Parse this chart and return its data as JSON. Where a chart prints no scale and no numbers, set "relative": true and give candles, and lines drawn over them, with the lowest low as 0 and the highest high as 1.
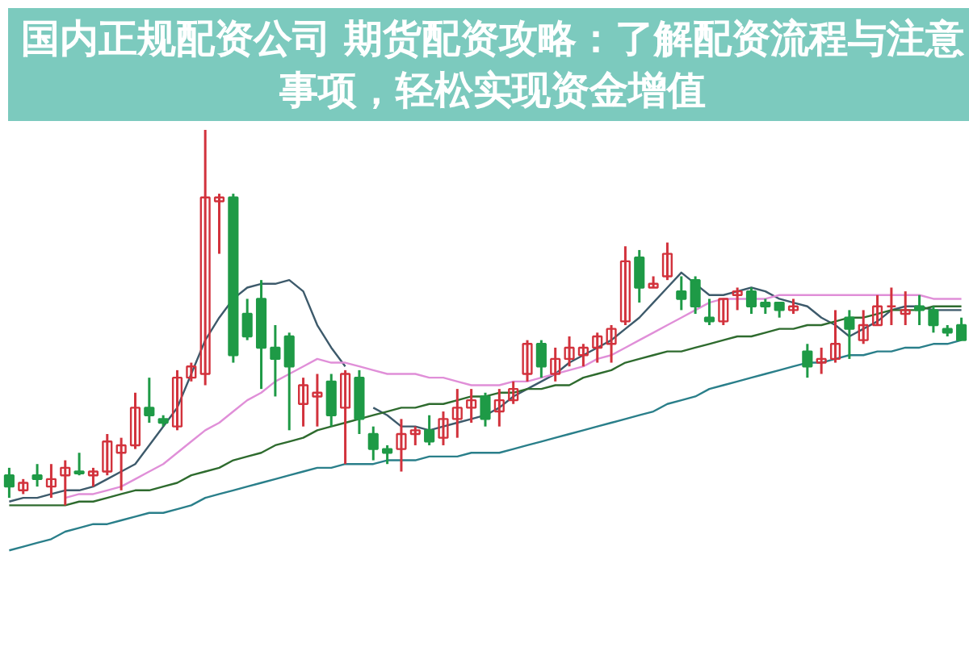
{
  "chart_data": {
    "type": "candlestick",
    "relative": true,
    "title": "国内正规配资公司 期货配资攻略：了解配资流程与注意事项，轻松实现资金增值",
    "categories": [
      null,
      null,
      null,
      null,
      null,
      null,
      null,
      null,
      null,
      null,
      null,
      null,
      null,
      null,
      null,
      null,
      null,
      null,
      null,
      null,
      null,
      null,
      null,
      null,
      null,
      null,
      null,
      null,
      null,
      null,
      null,
      null,
      null,
      null,
      null,
      null,
      null,
      null,
      null,
      null,
      null,
      null,
      null,
      null,
      null,
      null,
      null,
      null,
      null,
      null,
      null,
      null,
      null,
      null,
      null,
      null,
      null,
      null,
      null,
      null,
      null,
      null,
      null,
      null,
      null,
      null,
      null,
      null,
      null
    ],
    "ohlc": [
      [
        0.08,
        0.1,
        0.02,
        0.05
      ],
      [
        0.04,
        0.07,
        0.03,
        0.06
      ],
      [
        0.08,
        0.11,
        0.05,
        0.07
      ],
      [
        0.05,
        0.11,
        0.02,
        0.07
      ],
      [
        0.08,
        0.12,
        0.0,
        0.1
      ],
      [
        0.09,
        0.14,
        0.08,
        0.085
      ],
      [
        0.08,
        0.1,
        0.05,
        0.09
      ],
      [
        0.09,
        0.19,
        0.08,
        0.17
      ],
      [
        0.14,
        0.18,
        0.04,
        0.16
      ],
      [
        0.16,
        0.3,
        0.15,
        0.26
      ],
      [
        0.26,
        0.34,
        0.22,
        0.24
      ],
      [
        0.23,
        0.24,
        0.21,
        0.22
      ],
      [
        0.21,
        0.36,
        0.2,
        0.34
      ],
      [
        0.34,
        0.38,
        0.33,
        0.37
      ],
      [
        0.35,
        1.0,
        0.32,
        0.82
      ],
      [
        0.81,
        0.83,
        0.67,
        0.82
      ],
      [
        0.82,
        0.83,
        0.38,
        0.4
      ],
      [
        0.51,
        0.55,
        0.44,
        0.45
      ],
      [
        0.55,
        0.6,
        0.31,
        0.42
      ],
      [
        0.42,
        0.48,
        0.29,
        0.39
      ],
      [
        0.45,
        0.46,
        0.2,
        0.37
      ],
      [
        0.27,
        0.34,
        0.21,
        0.32
      ],
      [
        0.29,
        0.35,
        0.21,
        0.3
      ],
      [
        0.33,
        0.35,
        0.21,
        0.24
      ],
      [
        0.26,
        0.36,
        0.11,
        0.35
      ],
      [
        0.34,
        0.36,
        0.19,
        0.23
      ],
      [
        0.19,
        0.21,
        0.12,
        0.15
      ],
      [
        0.15,
        0.16,
        0.11,
        0.14
      ],
      [
        0.15,
        0.23,
        0.09,
        0.19
      ],
      [
        0.19,
        0.21,
        0.16,
        0.2
      ],
      [
        0.2,
        0.24,
        0.16,
        0.17
      ],
      [
        0.18,
        0.25,
        0.16,
        0.23
      ],
      [
        0.23,
        0.31,
        0.18,
        0.26
      ],
      [
        0.26,
        0.31,
        0.22,
        0.28
      ],
      [
        0.29,
        0.3,
        0.21,
        0.23
      ],
      [
        0.25,
        0.31,
        0.21,
        0.28
      ],
      [
        0.28,
        0.33,
        0.27,
        0.31
      ],
      [
        0.35,
        0.44,
        0.33,
        0.43
      ],
      [
        0.43,
        0.44,
        0.34,
        0.37
      ],
      [
        0.35,
        0.42,
        0.33,
        0.39
      ],
      [
        0.39,
        0.45,
        0.37,
        0.42
      ],
      [
        0.4,
        0.43,
        0.37,
        0.42
      ],
      [
        0.42,
        0.46,
        0.38,
        0.45
      ],
      [
        0.43,
        0.48,
        0.38,
        0.47
      ],
      [
        0.49,
        0.69,
        0.48,
        0.65
      ],
      [
        0.66,
        0.68,
        0.54,
        0.58
      ],
      [
        0.58,
        0.61,
        0.58,
        0.59
      ],
      [
        0.61,
        0.7,
        0.6,
        0.67
      ],
      [
        0.57,
        0.61,
        0.52,
        0.55
      ],
      [
        0.6,
        0.61,
        0.51,
        0.53
      ],
      [
        0.5,
        0.55,
        0.48,
        0.49
      ],
      [
        0.49,
        0.55,
        0.48,
        0.55
      ],
      [
        0.56,
        0.58,
        0.52,
        0.57
      ],
      [
        0.57,
        0.58,
        0.51,
        0.53
      ],
      [
        0.54,
        0.55,
        0.51,
        0.53
      ],
      [
        0.54,
        0.54,
        0.5,
        0.52
      ],
      [
        0.52,
        0.55,
        0.51,
        0.53
      ],
      [
        0.41,
        0.43,
        0.34,
        0.37
      ],
      [
        0.38,
        0.42,
        0.35,
        0.39
      ],
      [
        0.39,
        0.52,
        0.38,
        0.43
      ],
      [
        0.5,
        0.52,
        0.39,
        0.47
      ],
      [
        0.44,
        0.52,
        0.43,
        0.48
      ],
      [
        0.48,
        0.56,
        0.48,
        0.53
      ],
      [
        0.53,
        0.58,
        0.48,
        0.53
      ],
      [
        0.51,
        0.57,
        0.48,
        0.52
      ],
      [
        0.53,
        0.56,
        0.48,
        0.52
      ],
      [
        0.52,
        0.53,
        0.46,
        0.48
      ],
      [
        0.47,
        0.48,
        0.45,
        0.46
      ],
      [
        0.48,
        0.5,
        0.44,
        0.44
      ]
    ],
    "series": [
      {
        "type": "line",
        "color": "#3d5a6b",
        "values": [
          0.01,
          0.02,
          0.02,
          0.03,
          0.04,
          0.04,
          0.05,
          0.07,
          0.09,
          0.11,
          0.16,
          0.21,
          0.26,
          0.35,
          0.44,
          0.5,
          0.55,
          0.58,
          0.59,
          0.59,
          0.6,
          0.57,
          0.48,
          0.42,
          0.37,
          null,
          0.26,
          0.24,
          0.21,
          0.21,
          0.2,
          0.21,
          0.22,
          0.23,
          0.24,
          0.26,
          0.29,
          0.31,
          0.33,
          0.35,
          0.38,
          0.4,
          0.42,
          0.44,
          0.47,
          0.5,
          0.54,
          0.58,
          0.62,
          0.59,
          0.56,
          0.56,
          0.57,
          0.58,
          0.57,
          0.55,
          0.54,
          0.53,
          0.5,
          0.48,
          0.45,
          0.47,
          0.49,
          0.52,
          0.53,
          0.53,
          0.52,
          0.52,
          0.52
        ]
      },
      {
        "type": "line",
        "color": "#e08fd8",
        "values": [
          null,
          null,
          null,
          null,
          0.02,
          0.03,
          0.03,
          0.04,
          0.05,
          0.07,
          0.09,
          0.11,
          0.14,
          0.17,
          0.2,
          0.22,
          0.25,
          0.28,
          0.3,
          0.33,
          0.35,
          0.37,
          0.39,
          0.38,
          0.38,
          0.37,
          0.36,
          0.35,
          0.35,
          0.35,
          0.34,
          0.34,
          0.33,
          0.32,
          0.32,
          0.32,
          0.33,
          0.33,
          0.34,
          0.35,
          0.36,
          0.37,
          0.39,
          0.4,
          0.42,
          0.44,
          0.46,
          0.48,
          0.5,
          0.52,
          0.54,
          0.55,
          0.55,
          0.55,
          0.55,
          0.56,
          0.56,
          0.56,
          0.56,
          0.56,
          0.56,
          0.56,
          0.56,
          0.56,
          0.56,
          0.56,
          0.55,
          0.55,
          0.55
        ]
      },
      {
        "type": "line",
        "color": "#2e6b2e",
        "values": [
          0,
          0,
          0,
          0,
          0,
          0.01,
          0.01,
          0.02,
          0.03,
          0.04,
          0.04,
          0.05,
          0.06,
          0.08,
          0.09,
          0.1,
          0.12,
          0.13,
          0.14,
          0.16,
          0.17,
          0.18,
          0.2,
          0.21,
          0.22,
          0.23,
          0.24,
          0.25,
          0.26,
          0.26,
          0.27,
          0.27,
          0.28,
          0.29,
          0.29,
          0.3,
          0.3,
          0.31,
          0.31,
          0.32,
          0.32,
          0.34,
          0.35,
          0.36,
          0.38,
          0.39,
          0.4,
          0.41,
          0.41,
          0.42,
          0.43,
          0.44,
          0.45,
          0.45,
          0.46,
          0.47,
          0.47,
          0.48,
          0.48,
          0.49,
          0.5,
          0.5,
          0.51,
          0.52,
          0.52,
          0.52,
          0.53,
          0.53,
          0.53
        ]
      },
      {
        "type": "line",
        "color": "#2a7f8a",
        "values": [
          -0.12,
          -0.11,
          -0.1,
          -0.09,
          -0.07,
          -0.06,
          -0.05,
          -0.05,
          -0.04,
          -0.03,
          -0.02,
          -0.02,
          -0.01,
          0.0,
          0.02,
          0.03,
          0.04,
          0.05,
          0.06,
          0.07,
          0.08,
          0.09,
          0.1,
          0.1,
          0.11,
          0.11,
          0.11,
          0.12,
          0.12,
          0.12,
          0.13,
          0.13,
          0.13,
          0.14,
          0.14,
          0.14,
          0.15,
          0.16,
          0.17,
          0.18,
          0.19,
          0.2,
          0.21,
          0.22,
          0.23,
          0.24,
          0.25,
          0.27,
          0.28,
          0.29,
          0.31,
          0.32,
          0.33,
          0.34,
          0.35,
          0.36,
          0.37,
          0.38,
          0.38,
          0.39,
          0.4,
          0.4,
          0.41,
          0.41,
          0.42,
          0.42,
          0.43,
          0.43,
          0.44
        ]
      }
    ]
  }
}
